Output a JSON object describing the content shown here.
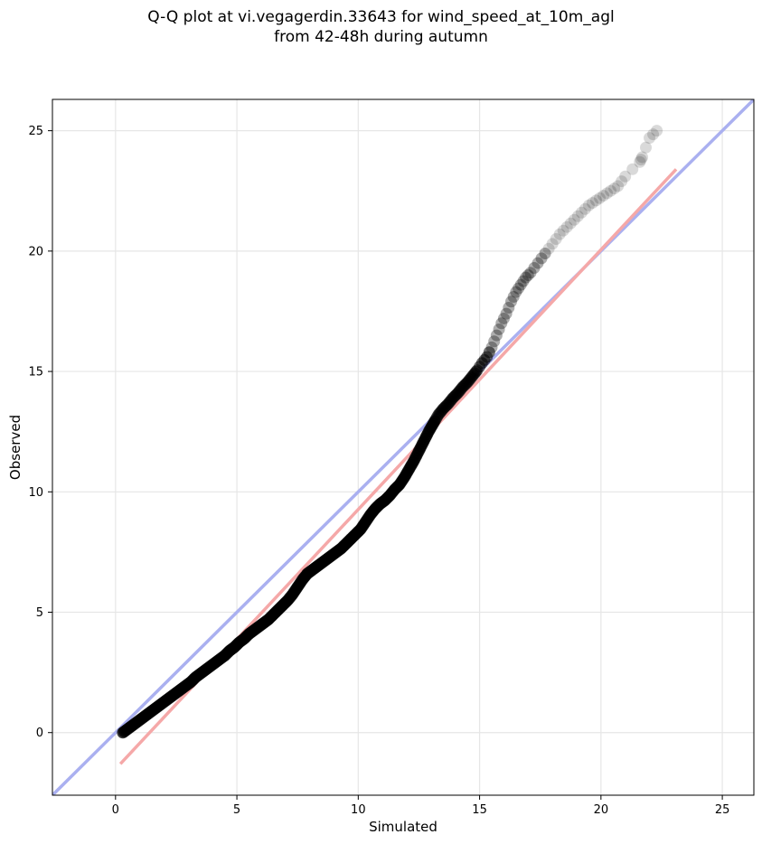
{
  "chart_data": {
    "type": "scatter",
    "title_line1": "Q-Q plot at vi.vegagerdin.33643 for wind_speed_at_10m_agl",
    "title_line2": "from 42-48h during autumn",
    "xlabel": "Simulated",
    "ylabel": "Observed",
    "xlim": [
      -2.6,
      26.3
    ],
    "ylim": [
      -2.6,
      26.3
    ],
    "xticks": [
      0,
      5,
      10,
      15,
      20,
      25
    ],
    "yticks": [
      0,
      5,
      10,
      15,
      20,
      25
    ],
    "grid": true,
    "colors": {
      "points": "#000000",
      "identity_line": "#aab0f0",
      "fit_line": "#f5a8a8",
      "grid": "#e6e6e6"
    },
    "identity_line": {
      "x": [
        -2.6,
        26.3
      ],
      "y": [
        -2.6,
        26.3
      ]
    },
    "fit_line": {
      "x": [
        0.2,
        23.1
      ],
      "y": [
        -1.3,
        23.4
      ]
    },
    "quantile_points": [
      [
        0.3,
        0.0
      ],
      [
        0.5,
        0.15
      ],
      [
        0.7,
        0.3
      ],
      [
        0.9,
        0.45
      ],
      [
        1.1,
        0.6
      ],
      [
        1.3,
        0.75
      ],
      [
        1.5,
        0.9
      ],
      [
        1.7,
        1.05
      ],
      [
        1.9,
        1.2
      ],
      [
        2.1,
        1.35
      ],
      [
        2.3,
        1.5
      ],
      [
        2.5,
        1.65
      ],
      [
        2.7,
        1.8
      ],
      [
        2.9,
        1.95
      ],
      [
        3.1,
        2.1
      ],
      [
        3.3,
        2.3
      ],
      [
        3.5,
        2.45
      ],
      [
        3.7,
        2.6
      ],
      [
        3.9,
        2.75
      ],
      [
        4.1,
        2.9
      ],
      [
        4.3,
        3.05
      ],
      [
        4.5,
        3.2
      ],
      [
        4.7,
        3.4
      ],
      [
        4.9,
        3.55
      ],
      [
        5.1,
        3.75
      ],
      [
        5.3,
        3.9
      ],
      [
        5.5,
        4.1
      ],
      [
        5.7,
        4.25
      ],
      [
        5.9,
        4.4
      ],
      [
        6.1,
        4.55
      ],
      [
        6.3,
        4.7
      ],
      [
        6.5,
        4.9
      ],
      [
        6.7,
        5.1
      ],
      [
        6.9,
        5.3
      ],
      [
        7.1,
        5.5
      ],
      [
        7.3,
        5.75
      ],
      [
        7.5,
        6.05
      ],
      [
        7.7,
        6.35
      ],
      [
        7.9,
        6.6
      ],
      [
        8.1,
        6.75
      ],
      [
        8.3,
        6.9
      ],
      [
        8.5,
        7.05
      ],
      [
        8.7,
        7.2
      ],
      [
        8.9,
        7.35
      ],
      [
        9.1,
        7.5
      ],
      [
        9.3,
        7.65
      ],
      [
        9.5,
        7.85
      ],
      [
        9.7,
        8.05
      ],
      [
        9.9,
        8.25
      ],
      [
        10.1,
        8.45
      ],
      [
        10.3,
        8.75
      ],
      [
        10.5,
        9.05
      ],
      [
        10.7,
        9.3
      ],
      [
        10.9,
        9.5
      ],
      [
        11.1,
        9.65
      ],
      [
        11.3,
        9.85
      ],
      [
        11.5,
        10.1
      ],
      [
        11.7,
        10.3
      ],
      [
        11.9,
        10.6
      ],
      [
        12.1,
        10.95
      ],
      [
        12.3,
        11.3
      ],
      [
        12.5,
        11.7
      ],
      [
        12.7,
        12.1
      ],
      [
        12.9,
        12.5
      ],
      [
        13.1,
        12.85
      ],
      [
        13.3,
        13.2
      ],
      [
        13.5,
        13.45
      ],
      [
        13.7,
        13.65
      ],
      [
        13.9,
        13.9
      ],
      [
        14.1,
        14.1
      ],
      [
        14.3,
        14.35
      ],
      [
        14.5,
        14.55
      ],
      [
        14.7,
        14.8
      ],
      [
        14.9,
        15.05
      ],
      [
        15.1,
        15.35
      ],
      [
        15.3,
        15.6
      ],
      [
        15.5,
        16.0
      ],
      [
        15.7,
        16.5
      ],
      [
        15.9,
        17.0
      ],
      [
        16.1,
        17.4
      ],
      [
        16.3,
        17.9
      ],
      [
        16.5,
        18.3
      ],
      [
        16.7,
        18.6
      ],
      [
        16.9,
        18.9
      ],
      [
        17.1,
        19.1
      ],
      [
        17.4,
        19.5
      ],
      [
        17.7,
        19.9
      ],
      [
        18.0,
        20.3
      ],
      [
        18.3,
        20.7
      ],
      [
        18.6,
        21.0
      ],
      [
        18.9,
        21.3
      ],
      [
        19.2,
        21.6
      ],
      [
        19.5,
        21.9
      ],
      [
        19.8,
        22.1
      ],
      [
        20.1,
        22.3
      ],
      [
        20.4,
        22.5
      ],
      [
        20.7,
        22.7
      ],
      [
        21.0,
        23.1
      ],
      [
        21.6,
        23.7
      ],
      [
        21.7,
        23.9
      ],
      [
        22.0,
        24.7
      ],
      [
        22.3,
        25.0
      ]
    ]
  }
}
